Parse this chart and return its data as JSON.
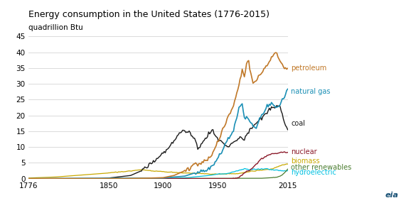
{
  "title": "Energy consumption in the United States (1776-2015)",
  "ylabel": "quadrillion Btu",
  "ylim": [
    0,
    45
  ],
  "xlim": [
    1776,
    2015
  ],
  "xticks": [
    1776,
    1850,
    1900,
    1950,
    2015
  ],
  "yticks": [
    0,
    5,
    10,
    15,
    20,
    25,
    30,
    35,
    40,
    45
  ],
  "colors": {
    "petroleum": "#c07828",
    "natural_gas": "#1a8fb5",
    "coal": "#1a1a1a",
    "nuclear": "#8b1a2a",
    "biomass": "#c8a800",
    "other_renewables": "#4a7c2f",
    "hydroelectric": "#00c0e0"
  },
  "labels": {
    "petroleum": "petroleum",
    "natural_gas": "natural gas",
    "coal": "coal",
    "nuclear": "nuclear",
    "biomass": "biomass",
    "other_renewables": "other renewables",
    "hydroelectric": "hydroelectric"
  },
  "background_color": "#ffffff",
  "grid_color": "#cccccc"
}
